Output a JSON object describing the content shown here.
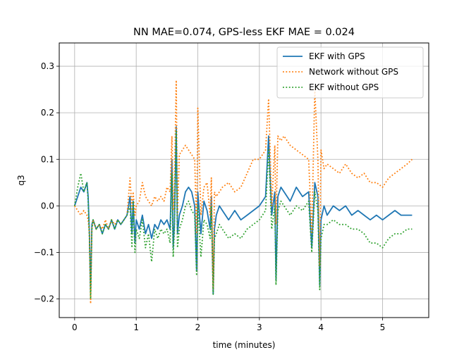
{
  "chart_data": {
    "type": "line",
    "title": "NN MAE=0.074, GPS-less EKF MAE = 0.024",
    "xlabel": "time (minutes)",
    "ylabel": "q3",
    "xlim": [
      -0.25,
      5.75
    ],
    "ylim": [
      -0.24,
      0.35
    ],
    "xticks": [
      0,
      1,
      2,
      3,
      4,
      5
    ],
    "xtick_labels": [
      "0",
      "1",
      "2",
      "3",
      "4",
      "5"
    ],
    "yticks": [
      -0.2,
      -0.1,
      0.0,
      0.1,
      0.2,
      0.3
    ],
    "ytick_labels": [
      "−0.2",
      "−0.1",
      "0.0",
      "0.1",
      "0.2",
      "0.3"
    ],
    "grid": true,
    "legend_position": "top-right",
    "series": [
      {
        "name": "EKF with GPS",
        "color": "#1f77b4",
        "style": "solid",
        "x": [
          0,
          0.05,
          0.1,
          0.15,
          0.2,
          0.22,
          0.24,
          0.26,
          0.28,
          0.3,
          0.35,
          0.4,
          0.45,
          0.5,
          0.55,
          0.6,
          0.65,
          0.7,
          0.75,
          0.8,
          0.85,
          0.9,
          0.93,
          0.95,
          0.98,
          1.0,
          1.05,
          1.1,
          1.15,
          1.2,
          1.25,
          1.3,
          1.35,
          1.4,
          1.45,
          1.5,
          1.55,
          1.58,
          1.6,
          1.62,
          1.65,
          1.67,
          1.7,
          1.75,
          1.8,
          1.85,
          1.9,
          1.95,
          1.98,
          2.0,
          2.05,
          2.1,
          2.15,
          2.2,
          2.22,
          2.25,
          2.27,
          2.3,
          2.35,
          2.4,
          2.5,
          2.6,
          2.7,
          2.8,
          2.9,
          3.0,
          3.1,
          3.15,
          3.2,
          3.25,
          3.27,
          3.3,
          3.35,
          3.4,
          3.5,
          3.6,
          3.7,
          3.8,
          3.85,
          3.9,
          3.95,
          3.98,
          4.0,
          4.05,
          4.1,
          4.2,
          4.3,
          4.4,
          4.5,
          4.6,
          4.7,
          4.8,
          4.9,
          5.0,
          5.1,
          5.2,
          5.3,
          5.4,
          5.48
        ],
        "y": [
          0.0,
          0.02,
          0.04,
          0.03,
          0.05,
          0.02,
          -0.06,
          -0.19,
          -0.04,
          -0.03,
          -0.05,
          -0.04,
          -0.06,
          -0.04,
          -0.05,
          -0.03,
          -0.05,
          -0.03,
          -0.04,
          -0.03,
          -0.02,
          0.02,
          -0.06,
          0.01,
          -0.08,
          -0.03,
          -0.05,
          -0.02,
          -0.06,
          -0.04,
          -0.07,
          -0.04,
          -0.05,
          -0.03,
          -0.04,
          -0.03,
          -0.05,
          0.1,
          -0.09,
          -0.04,
          0.17,
          -0.06,
          -0.02,
          0.0,
          0.03,
          0.04,
          0.03,
          0.0,
          -0.14,
          0.03,
          -0.06,
          0.01,
          -0.01,
          -0.05,
          0.02,
          -0.19,
          -0.05,
          -0.02,
          0.0,
          -0.01,
          -0.03,
          -0.01,
          -0.03,
          -0.02,
          -0.01,
          0.0,
          0.02,
          0.15,
          -0.02,
          0.03,
          -0.16,
          0.02,
          0.04,
          0.03,
          0.01,
          0.04,
          0.02,
          0.03,
          -0.09,
          0.05,
          0.02,
          -0.17,
          -0.03,
          0.0,
          -0.02,
          0.0,
          -0.01,
          0.0,
          -0.02,
          -0.01,
          -0.02,
          -0.03,
          -0.02,
          -0.03,
          -0.02,
          -0.01,
          -0.02,
          -0.02,
          -0.02
        ]
      },
      {
        "name": "Network without GPS",
        "color": "#ff7f0e",
        "style": "dotted",
        "x": [
          0,
          0.05,
          0.1,
          0.15,
          0.2,
          0.22,
          0.24,
          0.26,
          0.28,
          0.3,
          0.35,
          0.4,
          0.45,
          0.5,
          0.55,
          0.6,
          0.65,
          0.7,
          0.75,
          0.8,
          0.85,
          0.9,
          0.93,
          0.95,
          0.98,
          1.0,
          1.05,
          1.1,
          1.15,
          1.2,
          1.25,
          1.3,
          1.35,
          1.4,
          1.45,
          1.5,
          1.55,
          1.58,
          1.6,
          1.62,
          1.65,
          1.67,
          1.7,
          1.75,
          1.8,
          1.85,
          1.9,
          1.95,
          1.98,
          2.0,
          2.05,
          2.1,
          2.15,
          2.2,
          2.22,
          2.25,
          2.27,
          2.3,
          2.35,
          2.4,
          2.5,
          2.6,
          2.7,
          2.8,
          2.9,
          3.0,
          3.1,
          3.15,
          3.2,
          3.25,
          3.27,
          3.3,
          3.35,
          3.4,
          3.5,
          3.6,
          3.7,
          3.8,
          3.85,
          3.9,
          3.95,
          3.98,
          4.0,
          4.05,
          4.1,
          4.2,
          4.3,
          4.4,
          4.5,
          4.6,
          4.7,
          4.8,
          4.9,
          5.0,
          5.1,
          5.2,
          5.3,
          5.4,
          5.48
        ],
        "y": [
          0.0,
          -0.01,
          -0.02,
          -0.01,
          -0.02,
          -0.03,
          -0.06,
          -0.21,
          -0.05,
          -0.03,
          -0.05,
          -0.04,
          -0.05,
          -0.03,
          -0.05,
          -0.03,
          -0.04,
          -0.03,
          -0.04,
          -0.03,
          -0.02,
          0.06,
          -0.01,
          0.03,
          -0.02,
          0.0,
          0.01,
          0.05,
          0.02,
          0.01,
          0.0,
          0.02,
          0.01,
          0.02,
          0.01,
          0.04,
          0.03,
          0.15,
          -0.01,
          0.04,
          0.27,
          -0.02,
          0.11,
          0.12,
          0.13,
          0.12,
          0.11,
          0.1,
          -0.06,
          0.21,
          -0.02,
          0.04,
          0.05,
          -0.02,
          0.06,
          -0.18,
          0.03,
          0.02,
          0.03,
          0.04,
          0.05,
          0.03,
          0.04,
          0.07,
          0.1,
          0.1,
          0.12,
          0.23,
          0.0,
          0.13,
          -0.04,
          0.15,
          0.14,
          0.15,
          0.13,
          0.12,
          0.11,
          0.1,
          -0.06,
          0.25,
          0.1,
          -0.13,
          0.12,
          0.08,
          0.09,
          0.08,
          0.07,
          0.09,
          0.07,
          0.06,
          0.07,
          0.05,
          0.05,
          0.04,
          0.06,
          0.07,
          0.08,
          0.09,
          0.1
        ]
      },
      {
        "name": "EKF without GPS",
        "color": "#2ca02c",
        "style": "dotted",
        "x": [
          0,
          0.05,
          0.1,
          0.15,
          0.2,
          0.22,
          0.24,
          0.26,
          0.28,
          0.3,
          0.35,
          0.4,
          0.45,
          0.5,
          0.55,
          0.6,
          0.65,
          0.7,
          0.75,
          0.8,
          0.85,
          0.9,
          0.93,
          0.95,
          0.98,
          1.0,
          1.05,
          1.1,
          1.15,
          1.2,
          1.25,
          1.3,
          1.35,
          1.4,
          1.45,
          1.5,
          1.55,
          1.58,
          1.6,
          1.62,
          1.65,
          1.67,
          1.7,
          1.75,
          1.8,
          1.85,
          1.9,
          1.95,
          1.98,
          2.0,
          2.05,
          2.1,
          2.15,
          2.2,
          2.22,
          2.25,
          2.27,
          2.3,
          2.35,
          2.4,
          2.5,
          2.6,
          2.7,
          2.8,
          2.9,
          3.0,
          3.1,
          3.15,
          3.2,
          3.25,
          3.27,
          3.3,
          3.35,
          3.4,
          3.5,
          3.6,
          3.7,
          3.8,
          3.85,
          3.9,
          3.95,
          3.98,
          4.0,
          4.05,
          4.1,
          4.2,
          4.3,
          4.4,
          4.5,
          4.6,
          4.7,
          4.8,
          4.9,
          5.0,
          5.1,
          5.2,
          5.3,
          5.4,
          5.48
        ],
        "y": [
          0.0,
          0.04,
          0.07,
          0.03,
          0.05,
          0.01,
          -0.07,
          -0.2,
          -0.05,
          -0.03,
          -0.05,
          -0.04,
          -0.06,
          -0.04,
          -0.05,
          -0.03,
          -0.05,
          -0.03,
          -0.04,
          -0.03,
          -0.02,
          0.0,
          -0.09,
          0.01,
          -0.1,
          -0.05,
          -0.07,
          -0.03,
          -0.09,
          -0.06,
          -0.12,
          -0.05,
          -0.07,
          -0.05,
          -0.06,
          -0.05,
          -0.08,
          0.07,
          -0.11,
          -0.05,
          0.16,
          -0.09,
          -0.05,
          -0.03,
          0.0,
          0.01,
          -0.01,
          -0.02,
          -0.15,
          0.0,
          -0.11,
          -0.03,
          -0.04,
          -0.07,
          0.0,
          -0.19,
          -0.07,
          -0.06,
          -0.04,
          -0.05,
          -0.07,
          -0.06,
          -0.07,
          -0.05,
          -0.04,
          -0.03,
          -0.01,
          0.12,
          -0.05,
          0.0,
          -0.17,
          -0.01,
          0.01,
          0.0,
          -0.02,
          0.0,
          -0.01,
          0.01,
          -0.1,
          0.03,
          -0.01,
          -0.18,
          -0.07,
          -0.04,
          -0.04,
          -0.03,
          -0.04,
          -0.04,
          -0.05,
          -0.05,
          -0.06,
          -0.08,
          -0.08,
          -0.09,
          -0.07,
          -0.06,
          -0.06,
          -0.05,
          -0.05
        ]
      }
    ]
  }
}
